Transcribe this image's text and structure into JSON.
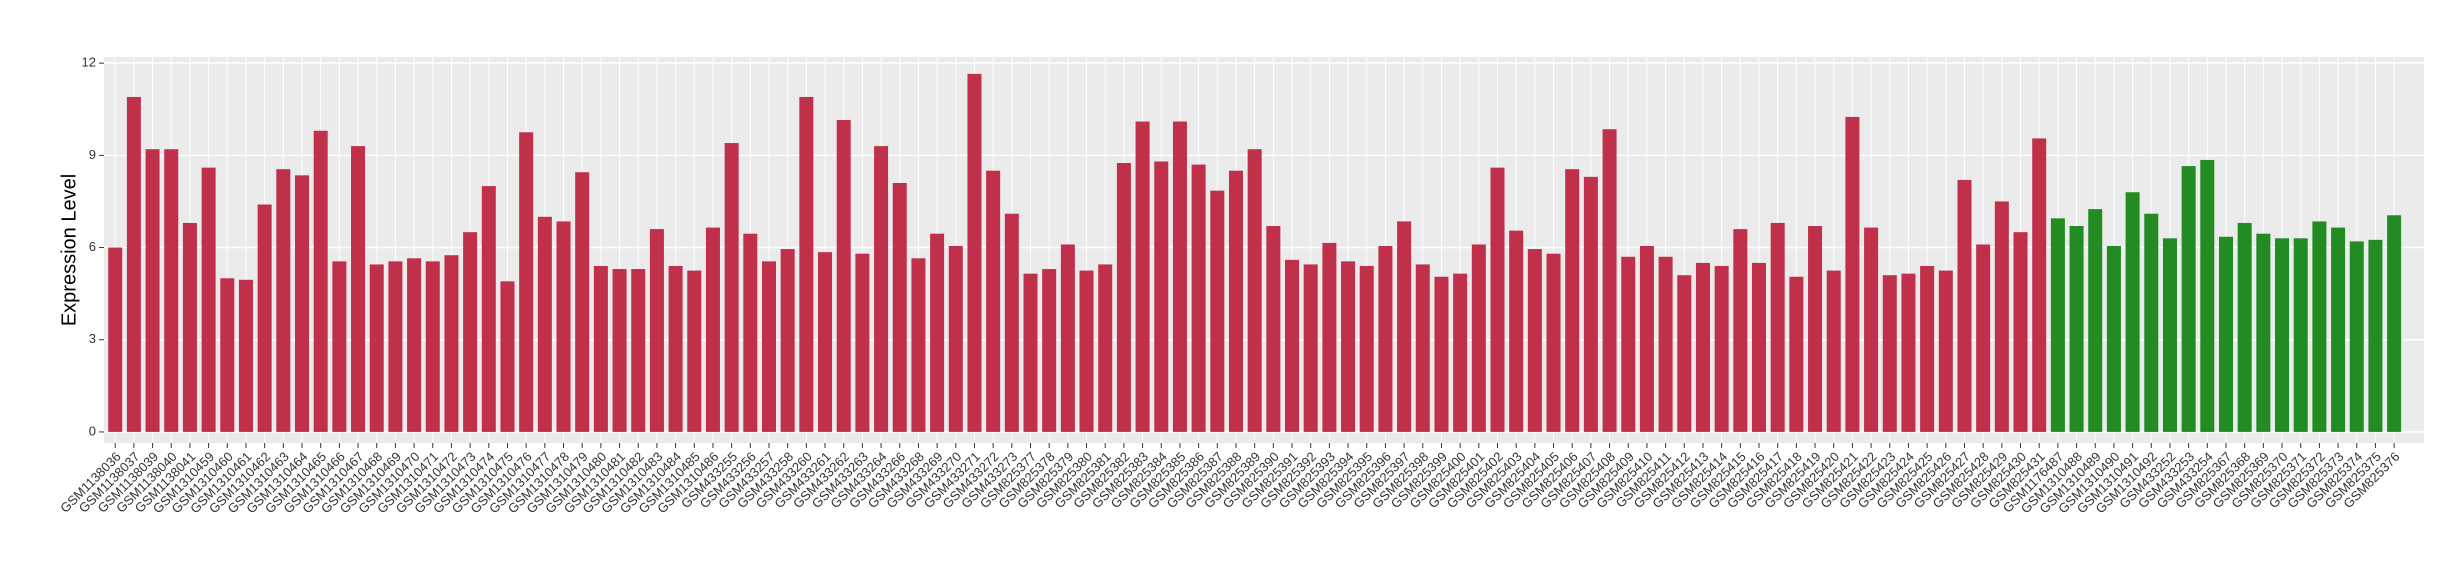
{
  "chart_data": {
    "type": "bar",
    "y_label": "Expression Level",
    "categories": [
      "GSM1138036",
      "GSM1138037",
      "GSM1138039",
      "GSM1138040",
      "GSM1138041",
      "GSM1310459",
      "GSM1310460",
      "GSM1310461",
      "GSM1310462",
      "GSM1310463",
      "GSM1310464",
      "GSM1310465",
      "GSM1310466",
      "GSM1310467",
      "GSM1310468",
      "GSM1310469",
      "GSM1310470",
      "GSM1310471",
      "GSM1310472",
      "GSM1310473",
      "GSM1310474",
      "GSM1310475",
      "GSM1310476",
      "GSM1310477",
      "GSM1310478",
      "GSM1310479",
      "GSM1310480",
      "GSM1310481",
      "GSM1310482",
      "GSM1310483",
      "GSM1310484",
      "GSM1310485",
      "GSM1310486",
      "GSM433255",
      "GSM433256",
      "GSM433257",
      "GSM433258",
      "GSM433260",
      "GSM433261",
      "GSM433262",
      "GSM433263",
      "GSM433264",
      "GSM433266",
      "GSM433268",
      "GSM433269",
      "GSM433270",
      "GSM433271",
      "GSM433272",
      "GSM433273",
      "GSM825377",
      "GSM825378",
      "GSM825379",
      "GSM825380",
      "GSM825381",
      "GSM825382",
      "GSM825383",
      "GSM825384",
      "GSM825385",
      "GSM825386",
      "GSM825387",
      "GSM825388",
      "GSM825389",
      "GSM825390",
      "GSM825391",
      "GSM825392",
      "GSM825393",
      "GSM825394",
      "GSM825395",
      "GSM825396",
      "GSM825397",
      "GSM825398",
      "GSM825399",
      "GSM825400",
      "GSM825401",
      "GSM825402",
      "GSM825403",
      "GSM825404",
      "GSM825405",
      "GSM825406",
      "GSM825407",
      "GSM825408",
      "GSM825409",
      "GSM825410",
      "GSM825411",
      "GSM825412",
      "GSM825413",
      "GSM825414",
      "GSM825415",
      "GSM825416",
      "GSM825417",
      "GSM825418",
      "GSM825419",
      "GSM825420",
      "GSM825421",
      "GSM825422",
      "GSM825423",
      "GSM825424",
      "GSM825425",
      "GSM825426",
      "GSM825427",
      "GSM825428",
      "GSM825429",
      "GSM825430",
      "GSM825431",
      "GSM1176487",
      "GSM1310488",
      "GSM1310489",
      "GSM1310490",
      "GSM1310491",
      "GSM1310492",
      "GSM433252",
      "GSM433253",
      "GSM433254",
      "GSM825367",
      "GSM825368",
      "GSM825369",
      "GSM825370",
      "GSM825371",
      "GSM825372",
      "GSM825373",
      "GSM825374",
      "GSM825375",
      "GSM825376"
    ],
    "values": [
      6.0,
      10.9,
      9.2,
      9.2,
      6.8,
      8.6,
      5.0,
      4.95,
      7.4,
      8.55,
      8.35,
      9.8,
      5.55,
      9.3,
      5.45,
      5.55,
      5.65,
      5.55,
      5.75,
      6.5,
      8.0,
      4.9,
      9.75,
      7.0,
      6.85,
      8.45,
      5.4,
      5.3,
      5.3,
      6.6,
      5.4,
      5.25,
      6.65,
      9.4,
      6.45,
      5.55,
      5.95,
      10.9,
      5.85,
      10.15,
      5.8,
      9.3,
      8.1,
      5.65,
      6.45,
      6.05,
      11.65,
      8.5,
      7.1,
      5.15,
      5.3,
      6.1,
      5.25,
      5.45,
      8.75,
      10.1,
      8.8,
      10.1,
      8.7,
      7.85,
      8.5,
      9.2,
      6.7,
      5.6,
      5.45,
      6.15,
      5.55,
      5.4,
      6.05,
      6.85,
      5.45,
      5.05,
      5.15,
      6.1,
      8.6,
      6.55,
      5.95,
      5.8,
      8.55,
      8.3,
      9.85,
      5.7,
      6.05,
      5.7,
      5.1,
      5.5,
      5.4,
      6.6,
      5.5,
      6.8,
      5.05,
      6.7,
      5.25,
      10.25,
      6.65,
      5.1,
      5.15,
      5.4,
      5.25,
      8.2,
      6.1,
      7.5,
      6.5,
      9.55,
      6.95,
      6.7,
      7.25,
      6.05,
      7.8,
      7.1,
      6.3,
      8.65,
      8.85,
      6.35,
      6.8,
      6.45,
      6.3,
      6.3,
      6.85,
      6.65,
      6.2,
      6.25,
      7.05
    ],
    "colors": [
      "#c0304a",
      "#c0304a",
      "#c0304a",
      "#c0304a",
      "#c0304a",
      "#c0304a",
      "#c0304a",
      "#c0304a",
      "#c0304a",
      "#c0304a",
      "#c0304a",
      "#c0304a",
      "#c0304a",
      "#c0304a",
      "#c0304a",
      "#c0304a",
      "#c0304a",
      "#c0304a",
      "#c0304a",
      "#c0304a",
      "#c0304a",
      "#c0304a",
      "#c0304a",
      "#c0304a",
      "#c0304a",
      "#c0304a",
      "#c0304a",
      "#c0304a",
      "#c0304a",
      "#c0304a",
      "#c0304a",
      "#c0304a",
      "#c0304a",
      "#c0304a",
      "#c0304a",
      "#c0304a",
      "#c0304a",
      "#c0304a",
      "#c0304a",
      "#c0304a",
      "#c0304a",
      "#c0304a",
      "#c0304a",
      "#c0304a",
      "#c0304a",
      "#c0304a",
      "#c0304a",
      "#c0304a",
      "#c0304a",
      "#c0304a",
      "#c0304a",
      "#c0304a",
      "#c0304a",
      "#c0304a",
      "#c0304a",
      "#c0304a",
      "#c0304a",
      "#c0304a",
      "#c0304a",
      "#c0304a",
      "#c0304a",
      "#c0304a",
      "#c0304a",
      "#c0304a",
      "#c0304a",
      "#c0304a",
      "#c0304a",
      "#c0304a",
      "#c0304a",
      "#c0304a",
      "#c0304a",
      "#c0304a",
      "#c0304a",
      "#c0304a",
      "#c0304a",
      "#c0304a",
      "#c0304a",
      "#c0304a",
      "#c0304a",
      "#c0304a",
      "#c0304a",
      "#c0304a",
      "#c0304a",
      "#c0304a",
      "#c0304a",
      "#c0304a",
      "#c0304a",
      "#c0304a",
      "#c0304a",
      "#c0304a",
      "#c0304a",
      "#c0304a",
      "#c0304a",
      "#c0304a",
      "#c0304a",
      "#c0304a",
      "#c0304a",
      "#c0304a",
      "#c0304a",
      "#c0304a",
      "#c0304a",
      "#c0304a",
      "#c0304a",
      "#c0304a",
      "#228b22",
      "#228b22",
      "#228b22",
      "#228b22",
      "#228b22",
      "#228b22",
      "#228b22",
      "#228b22",
      "#228b22",
      "#228b22",
      "#228b22",
      "#228b22",
      "#228b22",
      "#228b22",
      "#228b22",
      "#228b22",
      "#228b22",
      "#228b22",
      "#228b22"
    ],
    "ylim": [
      -0.36,
      12.2
    ],
    "yticks": [
      0,
      3,
      6,
      9,
      12
    ],
    "grid": true
  }
}
